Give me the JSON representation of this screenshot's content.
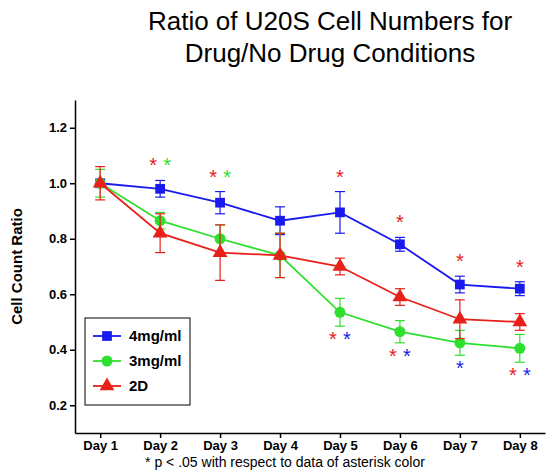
{
  "chart_data": {
    "type": "line",
    "title": "Ratio of U20S Cell Numbers for Drug/No Drug Conditions",
    "y_label": "Cell Count Ratio",
    "note": "* p < .05 with respect to data of asterisk color",
    "significance_symbol": "*",
    "categories": [
      "Day 1",
      "Day 2",
      "Day 3",
      "Day 4",
      "Day 5",
      "Day 6",
      "Day 7",
      "Day 8"
    ],
    "ylim": [
      0.1,
      1.3
    ],
    "yticks": [
      0.2,
      0.4,
      0.6,
      0.8,
      {
        "value": 1,
        "label": "1.0"
      },
      1.2
    ],
    "legend": "lower left",
    "series": [
      {
        "name": "4mg/ml",
        "color": "#1a1aef",
        "marker": "square",
        "line_style": "solid",
        "values": [
          1.0,
          0.98,
          0.93,
          0.865,
          0.895,
          0.78,
          0.635,
          0.62
        ],
        "errors": [
          0.01,
          0.03,
          0.04,
          0.05,
          0.075,
          0.025,
          0.03,
          0.025
        ],
        "significant_vs": [
          [],
          [
            "2D",
            "3mg/ml"
          ],
          [
            "2D",
            "3mg/ml"
          ],
          [],
          [
            "2D"
          ],
          [
            "2D"
          ],
          [
            "2D"
          ],
          [
            "2D"
          ]
        ]
      },
      {
        "name": "3mg/ml",
        "color": "#2ee02e",
        "marker": "circle",
        "line_style": "solid",
        "values": [
          1.0,
          0.865,
          0.8,
          0.74,
          0.535,
          0.465,
          0.425,
          0.405
        ],
        "errors": [
          0.05,
          0.03,
          0.05,
          0.08,
          0.05,
          0.04,
          0.045,
          0.05
        ],
        "significant_vs": [
          [],
          [],
          [],
          [],
          [
            "2D",
            "4mg/ml"
          ],
          [
            "2D",
            "4mg/ml"
          ],
          [
            "4mg/ml"
          ],
          [
            "2D",
            "4mg/ml"
          ]
        ]
      },
      {
        "name": "2D",
        "color": "#e8201a",
        "marker": "triangle",
        "line_style": "solid",
        "values": [
          1.0,
          0.82,
          0.75,
          0.74,
          0.7,
          0.59,
          0.51,
          0.5
        ],
        "errors": [
          0.06,
          0.07,
          0.1,
          0.08,
          0.03,
          0.03,
          0.07,
          0.03
        ],
        "significant_vs": [
          [],
          [],
          [],
          [],
          [],
          [],
          [],
          []
        ]
      }
    ]
  }
}
